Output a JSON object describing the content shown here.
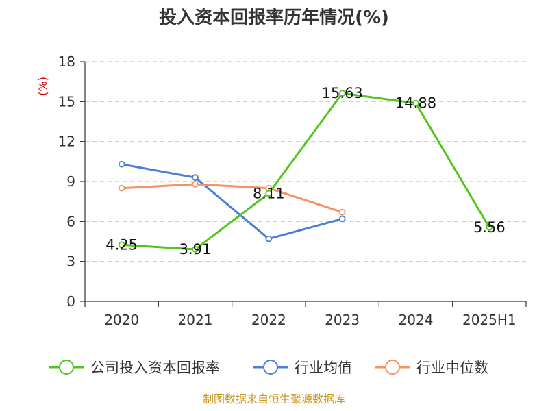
{
  "chart_data": {
    "type": "line",
    "title": "投入资本回报率历年情况(%)",
    "y_unit": "(%)",
    "categories": [
      "2020",
      "2021",
      "2022",
      "2023",
      "2024",
      "2025H1"
    ],
    "ylim": [
      0,
      18
    ],
    "yticks": [
      "0",
      "3",
      "6",
      "9",
      "12",
      "15",
      "18"
    ],
    "grid": true,
    "legend_position": "bottom",
    "series": [
      {
        "name": "公司投入资本回报率",
        "color": "#52c41a",
        "values": [
          4.25,
          3.91,
          8.11,
          15.63,
          14.88,
          5.56
        ],
        "labels": [
          "4.25",
          "3.91",
          "8.11",
          "15.63",
          "14.88",
          "5.56"
        ]
      },
      {
        "name": "行业均值",
        "color": "#4a7fd8",
        "values": [
          10.3,
          9.3,
          4.7,
          6.2,
          null,
          null
        ]
      },
      {
        "name": "行业中位数",
        "color": "#f59262",
        "values": [
          8.5,
          8.8,
          8.5,
          6.7,
          null,
          null
        ]
      }
    ]
  },
  "source": "制图数据来自恒生聚源数据库"
}
